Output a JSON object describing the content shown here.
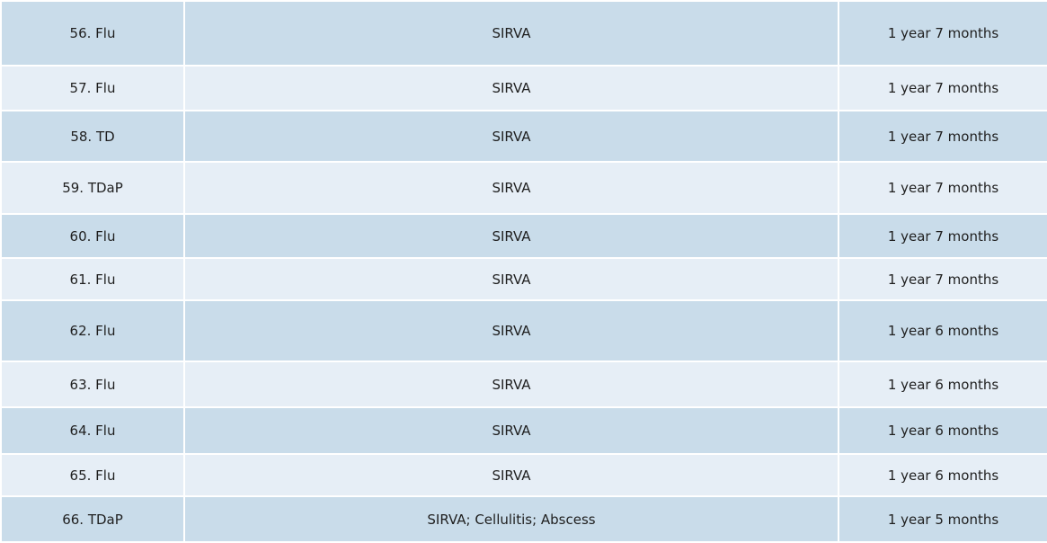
{
  "table": {
    "rows": [
      [
        "56. Flu",
        "SIRVA",
        "1 year 7 months"
      ],
      [
        "57. Flu",
        "SIRVA",
        "1 year 7 months"
      ],
      [
        "58. TD",
        "SIRVA",
        "1 year 7 months"
      ],
      [
        "59. TDaP",
        "SIRVA",
        "1 year 7 months"
      ],
      [
        "60. Flu",
        "SIRVA",
        "1 year 7 months"
      ],
      [
        "61. Flu",
        "SIRVA",
        "1 year 7 months"
      ],
      [
        "62. Flu",
        "SIRVA",
        "1 year 6 months"
      ],
      [
        "63. Flu",
        "SIRVA",
        "1 year 6 months"
      ],
      [
        "64. Flu",
        "SIRVA",
        "1 year 6 months"
      ],
      [
        "65. Flu",
        "SIRVA",
        "1 year 6 months"
      ],
      [
        "66. TDaP",
        "SIRVA; Cellulitis; Abscess",
        "1 year 5 months"
      ]
    ]
  }
}
